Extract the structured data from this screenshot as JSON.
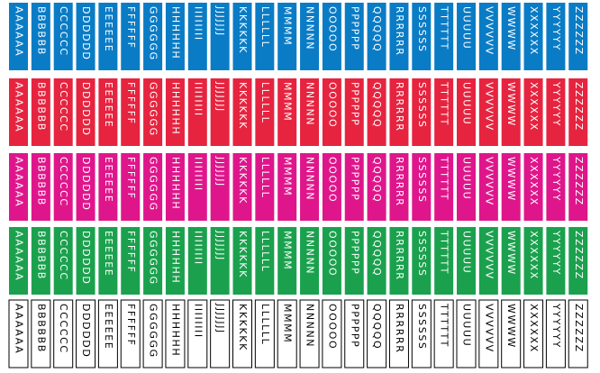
{
  "rows": [
    {
      "color": "#0a7cc6",
      "text_color": "#ffffff",
      "labels": [
        "AAAAAA",
        "BBBBBB",
        "CCCCCC",
        "DDDDDD",
        "EEEEEE",
        "FFFFFF",
        "GGGGGG",
        "HHHHHH",
        "IIIIIIII",
        "JJJJJJJ",
        "KKKKKK",
        "LLLLLL",
        "MMMM",
        "NNNNN",
        "OOOOO",
        "PPPPPP",
        "QQQQQ",
        "RRRRRR",
        "SSSSSS",
        "TTTTTT",
        "UUUUU",
        "VVVVVV",
        "WWWW",
        "XXXXXX",
        "YYYYYY",
        "ZZZZZZ"
      ]
    },
    {
      "color": "#e6243f",
      "text_color": "#ffffff",
      "labels": [
        "AAAAAA",
        "BBBBBB",
        "CCCCCC",
        "DDDDDD",
        "EEEEEE",
        "FFFFFF",
        "GGGGGG",
        "HHHHHH",
        "IIIIIIII",
        "JJJJJJJ",
        "KKKKKK",
        "LLLLLL",
        "MMMM",
        "NNNNN",
        "OOOOO",
        "PPPPPP",
        "QQQQQ",
        "RRRRRR",
        "SSSSSS",
        "TTTTTT",
        "UUUUU",
        "VVVVVV",
        "WWWW",
        "XXXXXX",
        "YYYYYY",
        "ZZZZZZ"
      ]
    },
    {
      "color": "#df168b",
      "text_color": "#ffffff",
      "labels": [
        "AAAAAA",
        "BBBBBB",
        "CCCCCC",
        "DDDDDD",
        "EEEEEE",
        "FFFFFF",
        "GGGGGG",
        "HHHHHH",
        "IIIIIIII",
        "JJJJJJJ",
        "KKKKKK",
        "LLLLLL",
        "MMMM",
        "NNNNN",
        "OOOOO",
        "PPPPPP",
        "QQQQQ",
        "RRRRRR",
        "SSSSSS",
        "TTTTTT",
        "UUUUU",
        "VVVVVV",
        "WWWW",
        "XXXXXX",
        "YYYYYY",
        "ZZZZZZ"
      ]
    },
    {
      "color": "#1ba14e",
      "text_color": "#ffffff",
      "labels": [
        "AAAAAA",
        "BBBBBB",
        "CCCCCC",
        "DDDDDD",
        "EEEEEE",
        "FFFFFF",
        "GGGGGG",
        "HHHHHH",
        "IIIIIIII",
        "JJJJJJJ",
        "KKKKKK",
        "LLLLLL",
        "MMMM",
        "NNNNN",
        "OOOOO",
        "PPPPPP",
        "QQQQQ",
        "RRRRRR",
        "SSSSSS",
        "TTTTTT",
        "UUUUU",
        "VVVVVV",
        "WWWW",
        "XXXXXX",
        "YYYYYY",
        "ZZZZZZ"
      ]
    },
    {
      "color": "#ffffff",
      "text_color": "#000000",
      "labels": [
        "AAAAAA",
        "BBBBBB",
        "CCCCCC",
        "DDDDDD",
        "EEEEEE",
        "FFFFFF",
        "GGGGGG",
        "HHHHHH",
        "IIIIIIII",
        "JJJJJJJ",
        "KKKKKK",
        "LLLLLL",
        "MMMM",
        "NNNNN",
        "OOOOO",
        "PPPPPP",
        "QQQQQ",
        "RRRRRR",
        "SSSSSS",
        "TTTTTT",
        "UUUUU",
        "VVVVVV",
        "WWWW",
        "XXXXXX",
        "YYYYYY",
        "ZZZZZZ"
      ]
    }
  ]
}
